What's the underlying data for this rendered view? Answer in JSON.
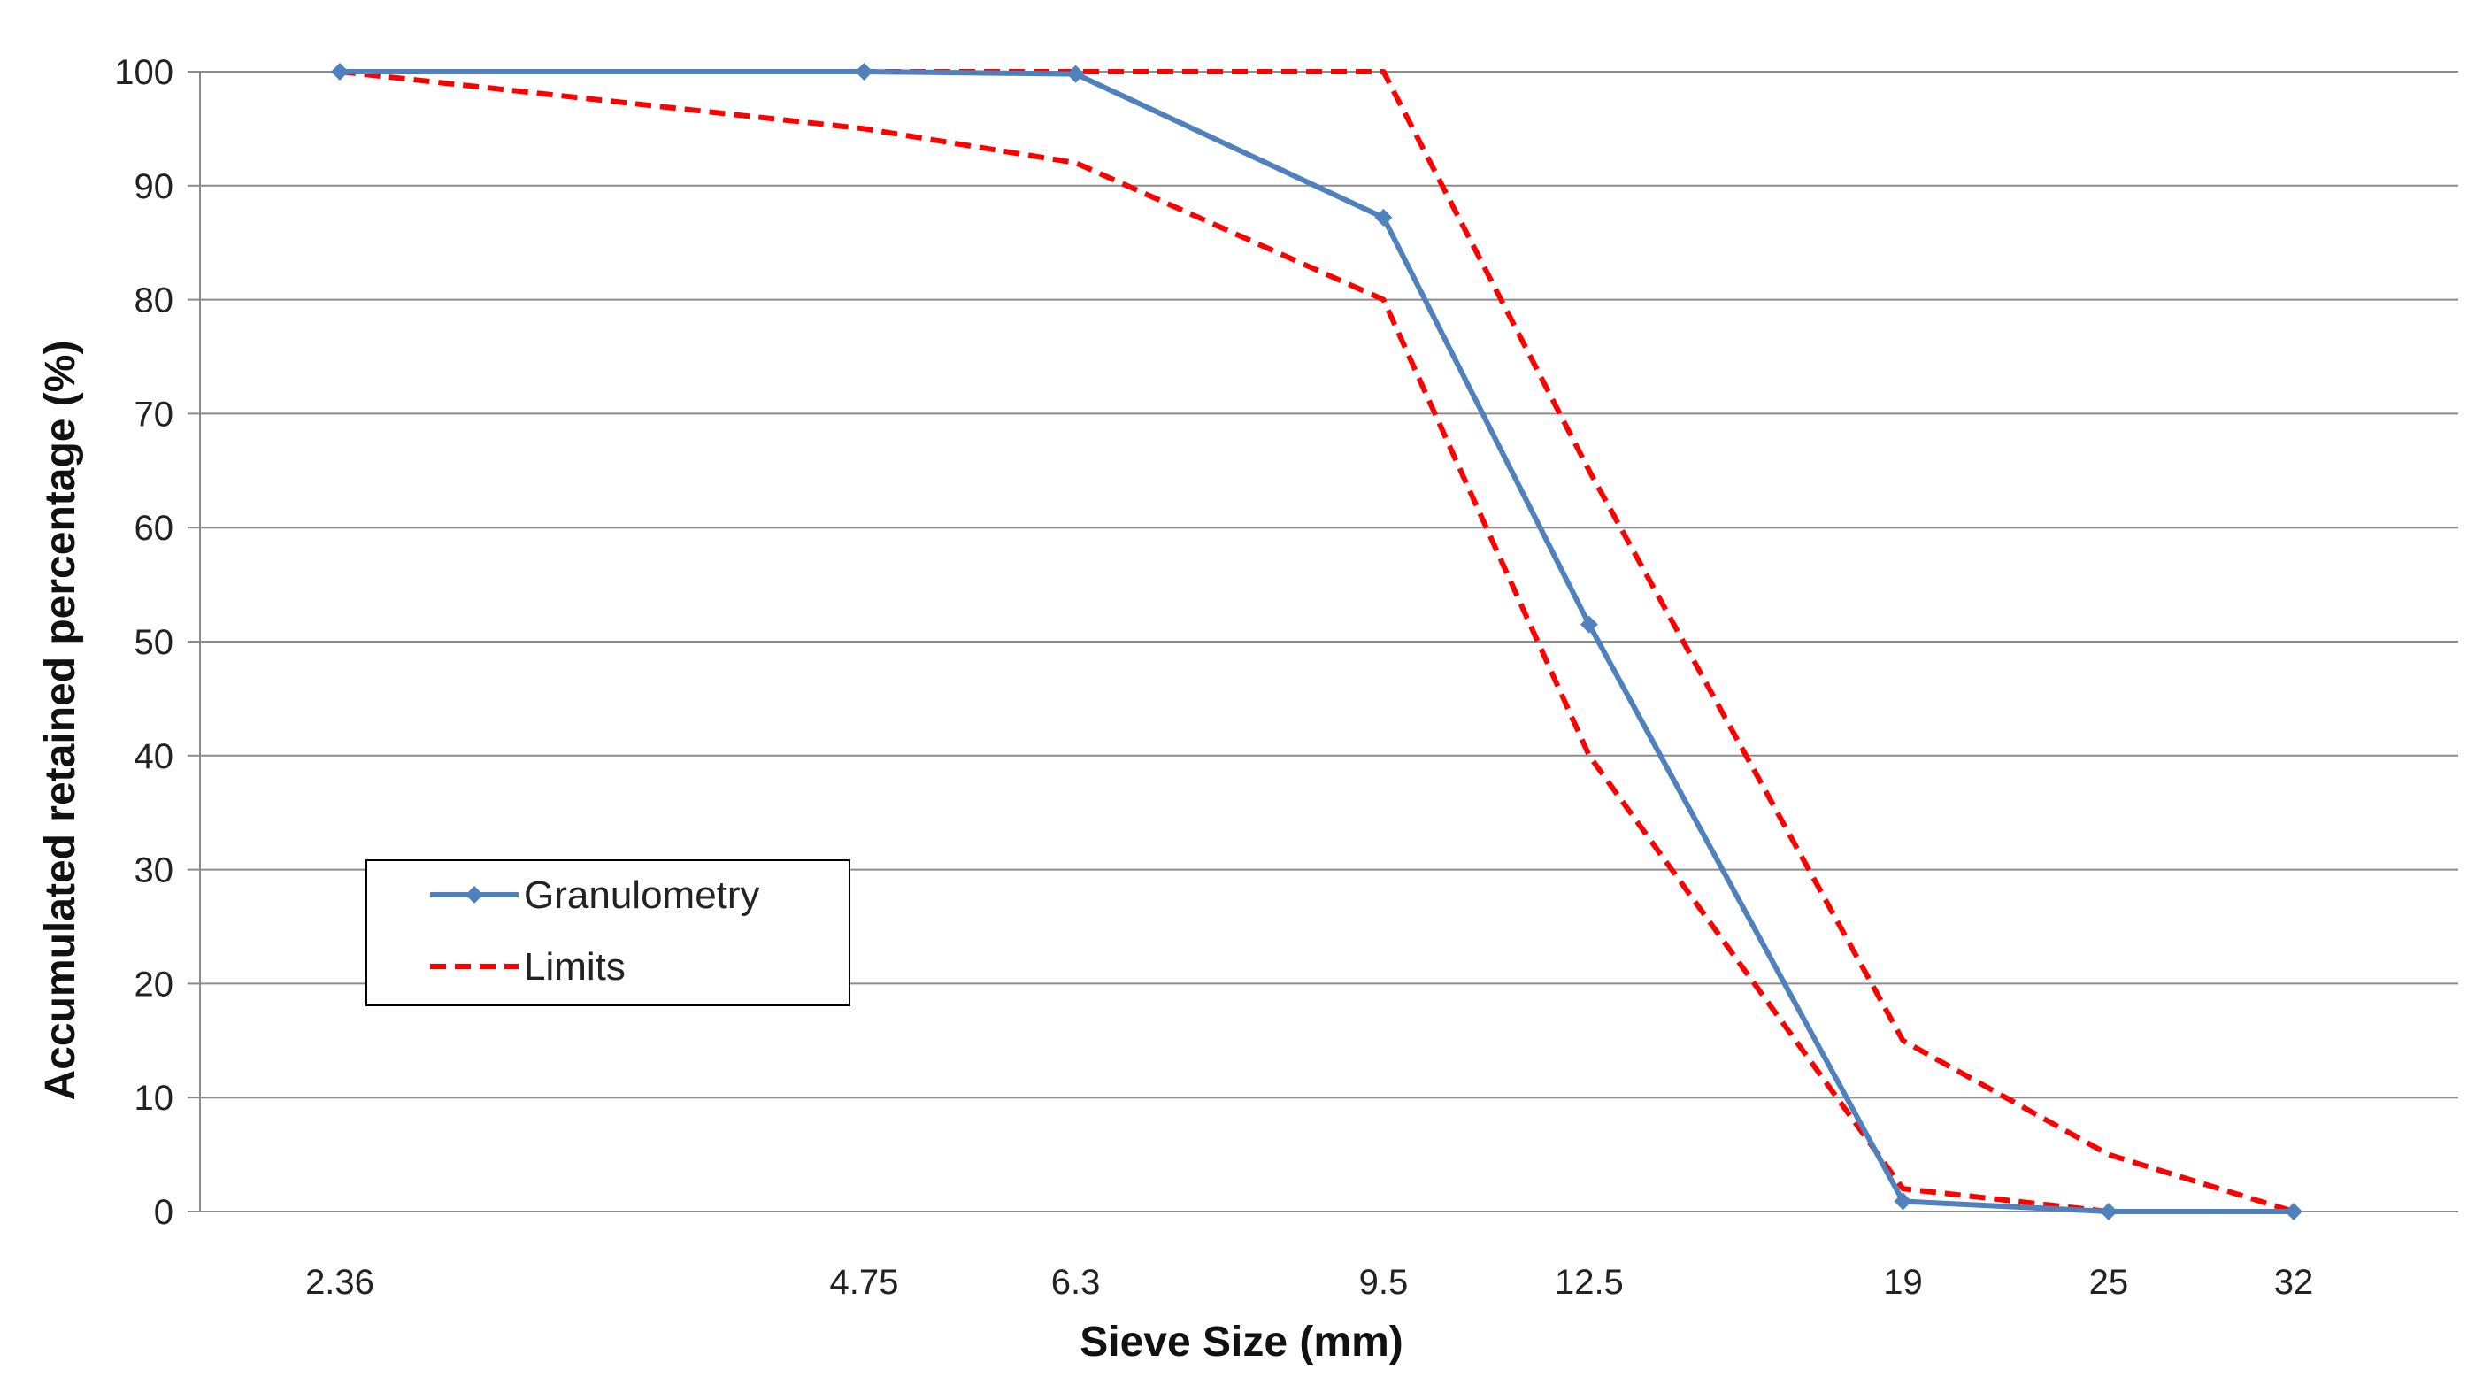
{
  "chart_data": {
    "type": "line",
    "title": "",
    "xlabel": "Sieve Size (mm)",
    "ylabel": "Accumulated retained percentage (%)",
    "x_scale": "log",
    "categories": [
      "2.36",
      "4.75",
      "6.3",
      "9.5",
      "12.5",
      "19",
      "25",
      "32"
    ],
    "x": [
      2.36,
      4.75,
      6.3,
      9.5,
      12.5,
      19,
      25,
      32
    ],
    "ylim": [
      0,
      100
    ],
    "yticks": [
      0,
      10,
      20,
      30,
      40,
      50,
      60,
      70,
      80,
      90,
      100
    ],
    "grid": true,
    "legend_position": "center-left",
    "series": [
      {
        "name": "Granulometry",
        "color": "#4F81BD",
        "style": "solid",
        "marker": "diamond",
        "x": [
          2.36,
          4.75,
          6.3,
          9.5,
          12.5,
          19,
          25,
          32
        ],
        "values": [
          100,
          100,
          99.8,
          87.2,
          51.5,
          0.9,
          0,
          0
        ]
      },
      {
        "name": "Limits",
        "color": "#FF0000",
        "style": "dashed",
        "marker": "none",
        "x": [
          2.36,
          4.75,
          6.3,
          9.5,
          12.5,
          19,
          25,
          32
        ],
        "values": [
          100,
          100,
          100,
          100,
          65,
          15,
          5,
          0
        ]
      },
      {
        "name": "Limits",
        "color": "#FF0000",
        "style": "dashed",
        "marker": "none",
        "show_in_legend": false,
        "x": [
          2.36,
          4.75,
          6.3,
          9.5,
          12.5,
          19,
          25,
          32
        ],
        "values": [
          100,
          95,
          92,
          80,
          40,
          2,
          0,
          0
        ]
      }
    ]
  }
}
